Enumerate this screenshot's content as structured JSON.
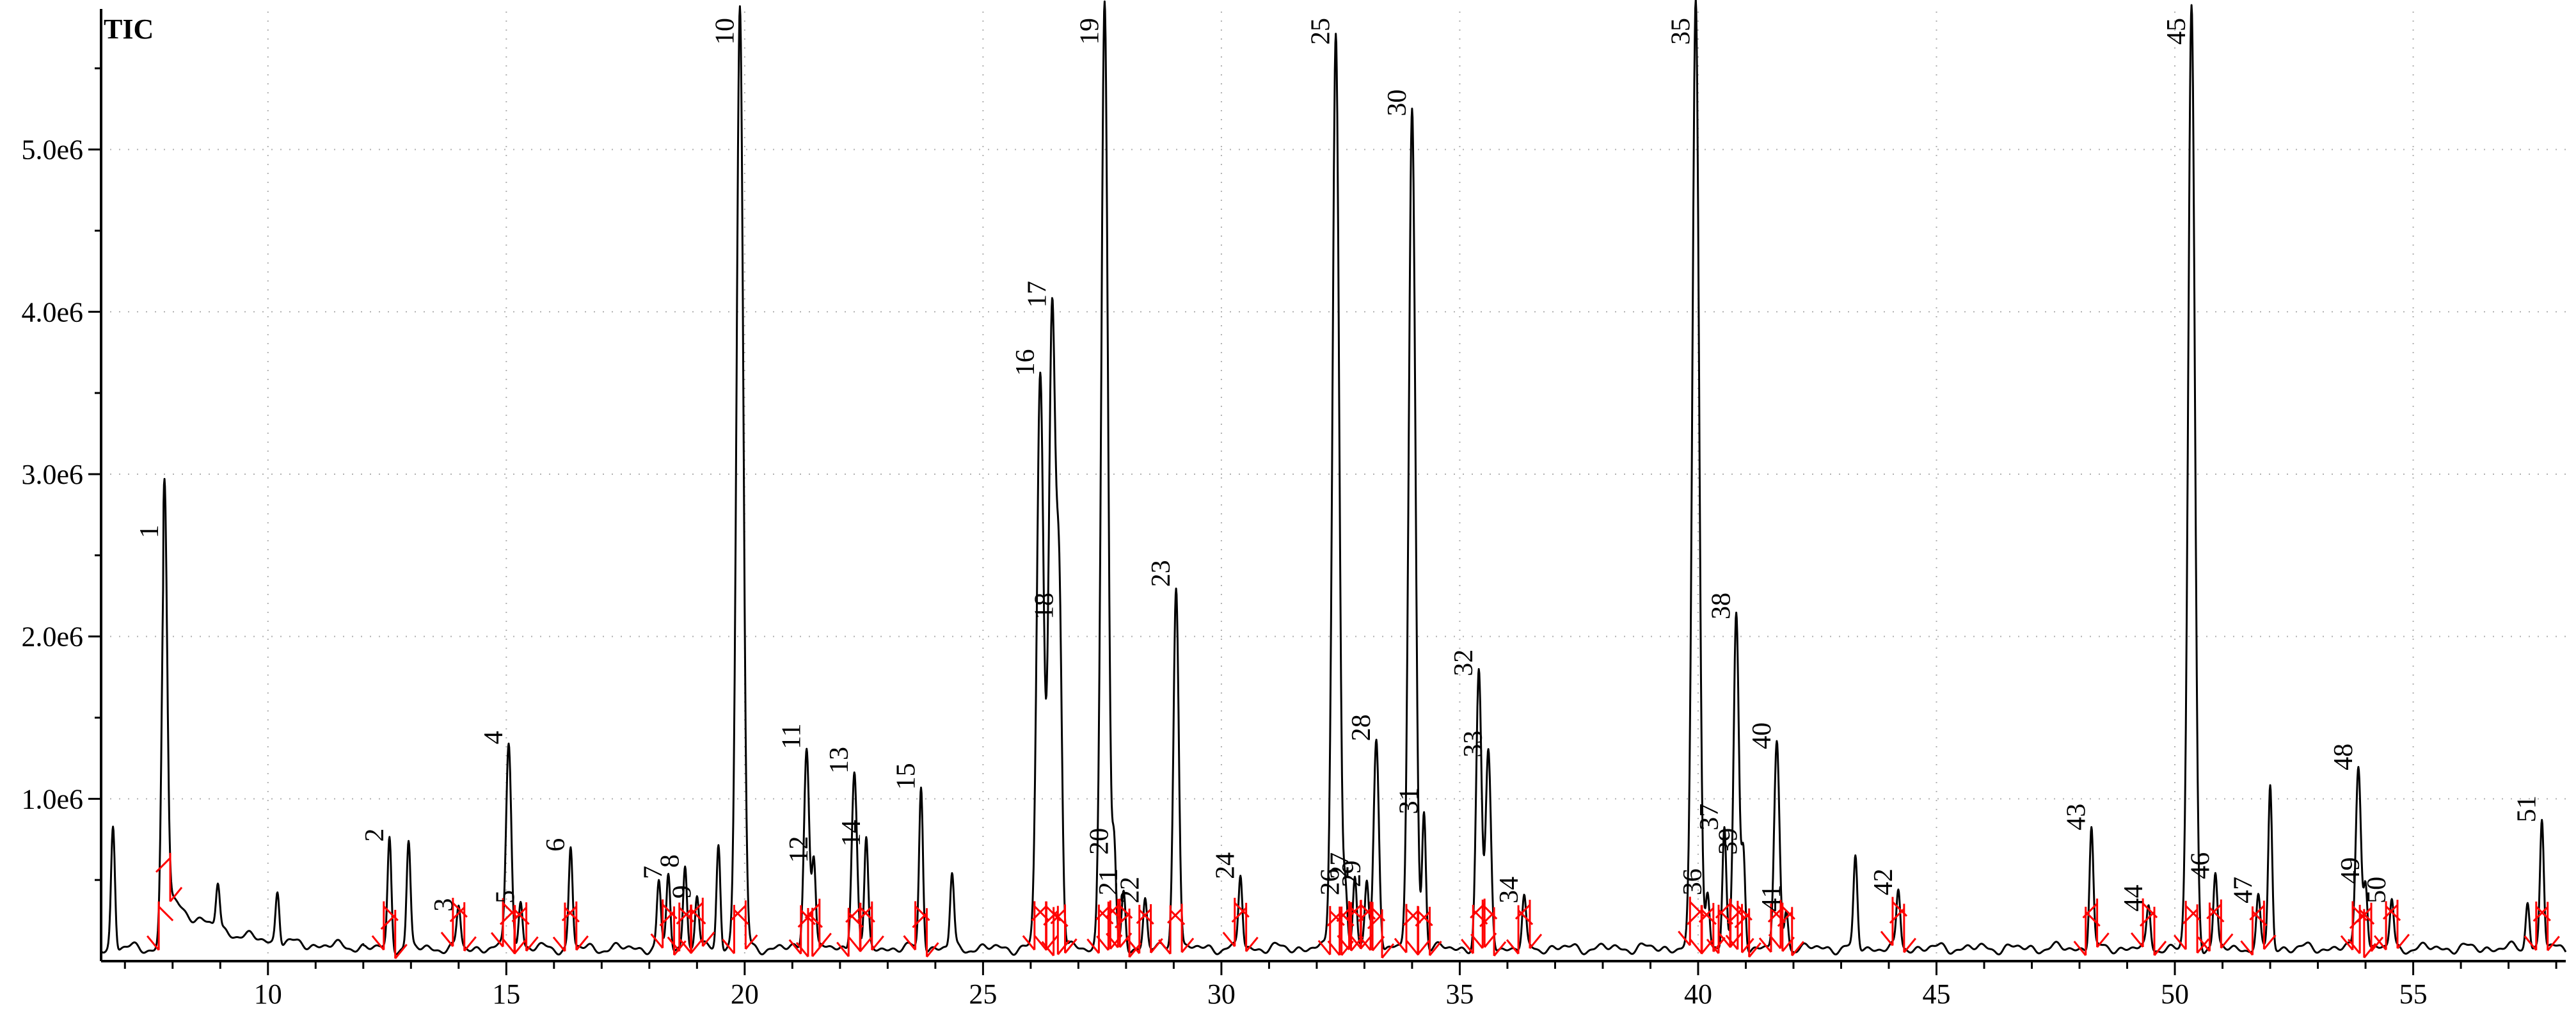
{
  "chart_data": {
    "type": "line",
    "title": "TIC",
    "xlabel": "",
    "ylabel": "",
    "xlim": [
      6.5,
      58.2
    ],
    "ylim": [
      0,
      5.85
    ],
    "grid": true,
    "x_ticks": [
      10,
      15,
      20,
      25,
      30,
      35,
      40,
      45,
      50,
      55
    ],
    "y_ticks": [
      {
        "value": 1.0,
        "label": "1.0e6"
      },
      {
        "value": 2.0,
        "label": "2.0e6"
      },
      {
        "value": 3.0,
        "label": "3.0e6"
      },
      {
        "value": 4.0,
        "label": "4.0e6"
      },
      {
        "value": 5.0,
        "label": "5.0e6"
      }
    ],
    "y_unit_note": "y values in units of 1e6 counts",
    "line_color": "#000000",
    "marker_color": "#ff0000",
    "grid_color": "#b0b0b0",
    "peaks": [
      {
        "label": "1",
        "rt": 7.83,
        "h": 2.55
      },
      {
        "label": "2",
        "rt": 12.55,
        "h": 0.68
      },
      {
        "label": "3",
        "rt": 14.0,
        "h": 0.25
      },
      {
        "label": "4",
        "rt": 15.05,
        "h": 1.28
      },
      {
        "label": "5",
        "rt": 15.3,
        "h": 0.3
      },
      {
        "label": "6",
        "rt": 16.35,
        "h": 0.62
      },
      {
        "label": "7",
        "rt": 18.4,
        "h": 0.45
      },
      {
        "label": "8",
        "rt": 18.75,
        "h": 0.52
      },
      {
        "label": "9",
        "rt": 19.0,
        "h": 0.33
      },
      {
        "label": "10",
        "rt": 19.9,
        "h": 5.8
      },
      {
        "label": "11",
        "rt": 21.3,
        "h": 1.25
      },
      {
        "label": "12",
        "rt": 21.45,
        "h": 0.55
      },
      {
        "label": "13",
        "rt": 22.3,
        "h": 1.1
      },
      {
        "label": "14",
        "rt": 22.55,
        "h": 0.65
      },
      {
        "label": "15",
        "rt": 23.7,
        "h": 1.0
      },
      {
        "label": "16",
        "rt": 26.2,
        "h": 3.55
      },
      {
        "label": "17",
        "rt": 26.45,
        "h": 3.97
      },
      {
        "label": "18",
        "rt": 26.6,
        "h": 2.05
      },
      {
        "label": "19",
        "rt": 27.55,
        "h": 5.85
      },
      {
        "label": "20",
        "rt": 27.75,
        "h": 0.6
      },
      {
        "label": "21",
        "rt": 27.95,
        "h": 0.35
      },
      {
        "label": "22",
        "rt": 28.4,
        "h": 0.3
      },
      {
        "label": "23",
        "rt": 29.05,
        "h": 2.25
      },
      {
        "label": "24",
        "rt": 30.4,
        "h": 0.45
      },
      {
        "label": "25",
        "rt": 32.4,
        "h": 5.65
      },
      {
        "label": "26",
        "rt": 32.6,
        "h": 0.35
      },
      {
        "label": "27",
        "rt": 32.8,
        "h": 0.45
      },
      {
        "label": "28",
        "rt": 33.25,
        "h": 1.3
      },
      {
        "label": "29",
        "rt": 33.05,
        "h": 0.4
      },
      {
        "label": "30",
        "rt": 34.0,
        "h": 5.15
      },
      {
        "label": "31",
        "rt": 34.25,
        "h": 0.85
      },
      {
        "label": "32",
        "rt": 35.4,
        "h": 1.7
      },
      {
        "label": "33",
        "rt": 35.6,
        "h": 1.2
      },
      {
        "label": "34",
        "rt": 36.35,
        "h": 0.3
      },
      {
        "label": "35",
        "rt": 39.95,
        "h": 5.85
      },
      {
        "label": "36",
        "rt": 40.2,
        "h": 0.35
      },
      {
        "label": "37",
        "rt": 40.55,
        "h": 0.75
      },
      {
        "label": "38",
        "rt": 40.8,
        "h": 2.05
      },
      {
        "label": "39",
        "rt": 40.95,
        "h": 0.6
      },
      {
        "label": "40",
        "rt": 41.65,
        "h": 1.25
      },
      {
        "label": "41",
        "rt": 41.85,
        "h": 0.25
      },
      {
        "label": "42",
        "rt": 44.2,
        "h": 0.35
      },
      {
        "label": "43",
        "rt": 48.25,
        "h": 0.75
      },
      {
        "label": "44",
        "rt": 49.45,
        "h": 0.25
      },
      {
        "label": "45",
        "rt": 50.35,
        "h": 5.8
      },
      {
        "label": "46",
        "rt": 50.85,
        "h": 0.45
      },
      {
        "label": "47",
        "rt": 51.75,
        "h": 0.3
      },
      {
        "label": "48",
        "rt": 53.85,
        "h": 1.12
      },
      {
        "label": "49",
        "rt": 54.0,
        "h": 0.42
      },
      {
        "label": "50",
        "rt": 54.55,
        "h": 0.3
      },
      {
        "label": "51",
        "rt": 57.7,
        "h": 0.8
      }
    ],
    "unlabeled_peaks": [
      {
        "rt": 6.75,
        "h": 0.75
      },
      {
        "rt": 8.95,
        "h": 0.28
      },
      {
        "rt": 10.2,
        "h": 0.32
      },
      {
        "rt": 12.95,
        "h": 0.65
      },
      {
        "rt": 18.2,
        "h": 0.4
      },
      {
        "rt": 19.45,
        "h": 0.65
      },
      {
        "rt": 24.35,
        "h": 0.45
      },
      {
        "rt": 43.3,
        "h": 0.55
      },
      {
        "rt": 52.0,
        "h": 1.0
      },
      {
        "rt": 57.4,
        "h": 0.3
      }
    ]
  }
}
